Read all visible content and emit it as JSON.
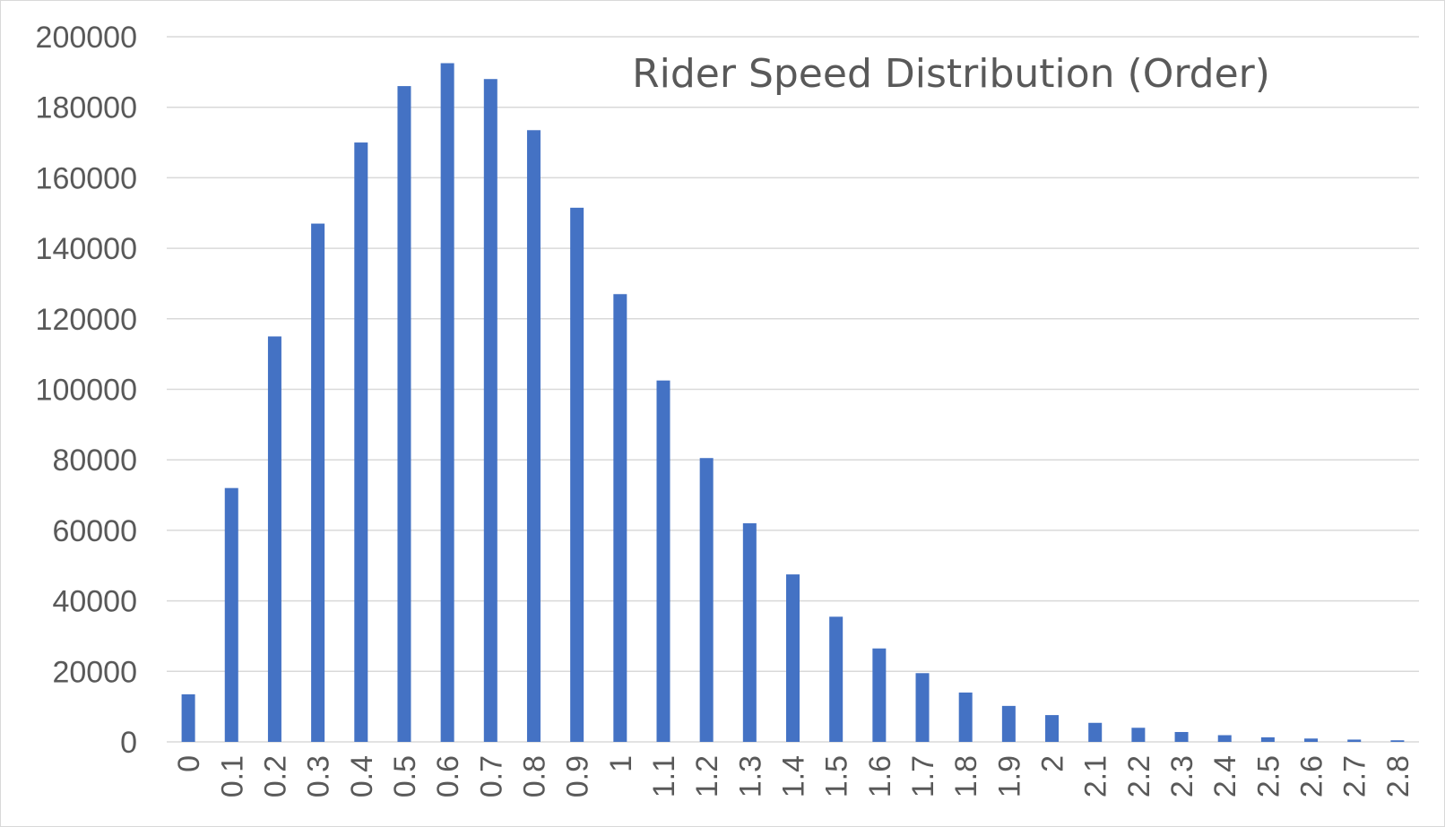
{
  "chart_data": {
    "type": "bar",
    "title": "Rider Speed Distribution (Order)",
    "xlabel": "",
    "ylabel": "",
    "ylim": [
      0,
      200000
    ],
    "y_ticks": [
      "0",
      "20000",
      "40000",
      "60000",
      "80000",
      "100000",
      "120000",
      "140000",
      "160000",
      "180000",
      "200000"
    ],
    "categories": [
      "0",
      "0.1",
      "0.2",
      "0.3",
      "0.4",
      "0.5",
      "0.6",
      "0.7",
      "0.8",
      "0.9",
      "1",
      "1.1",
      "1.2",
      "1.3",
      "1.4",
      "1.5",
      "1.6",
      "1.7",
      "1.8",
      "1.9",
      "2",
      "2.1",
      "2.2",
      "2.3",
      "2.4",
      "2.5",
      "2.6",
      "2.7",
      "2.8"
    ],
    "values": [
      13500,
      72000,
      115000,
      147000,
      170000,
      186000,
      192500,
      188000,
      173500,
      151500,
      127000,
      102500,
      80500,
      62000,
      47500,
      35500,
      26500,
      19500,
      14000,
      10200,
      7600,
      5400,
      4000,
      2800,
      1900,
      1300,
      950,
      650,
      450
    ],
    "grid": true,
    "legend": "none",
    "colors": {
      "bar": "#4472c4",
      "grid": "#d9d9d9",
      "text": "#595959"
    }
  }
}
